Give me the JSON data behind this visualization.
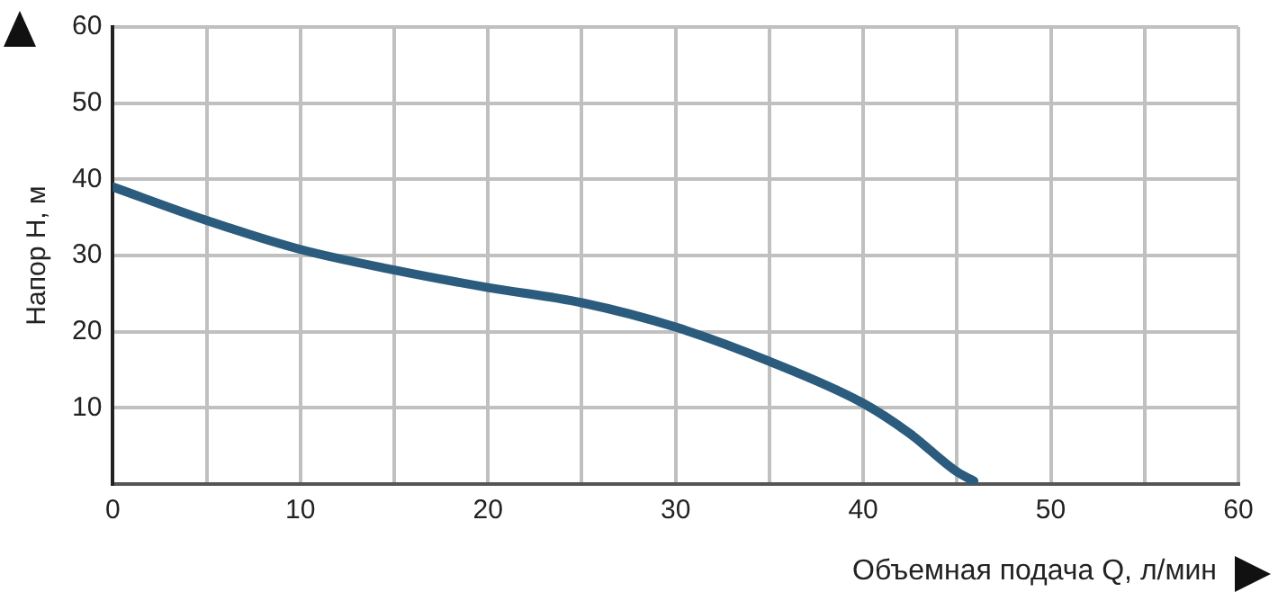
{
  "chart_data": {
    "type": "line",
    "xlabel": "Объемная подача Q, л/мин",
    "ylabel": "Напор H, м",
    "x": [
      0,
      5,
      10,
      15,
      20,
      25,
      30,
      35,
      40,
      42.5,
      45,
      45.9
    ],
    "series": [
      {
        "color": "#2b5b7d",
        "values": [
          39,
          34.6,
          30.8,
          28.1,
          25.8,
          23.8,
          20.6,
          16.1,
          10.6,
          6.6,
          1.6,
          0.4
        ]
      }
    ],
    "xlim": [
      0,
      60
    ],
    "ylim": [
      0,
      60
    ],
    "xticks": [
      0,
      {
        "value": 5,
        "label": null
      },
      10,
      {
        "value": 15,
        "label": null
      },
      20,
      {
        "value": 25,
        "label": null
      },
      30,
      {
        "value": 35,
        "label": null
      },
      40,
      {
        "value": 45,
        "label": null
      },
      50,
      {
        "value": 55,
        "label": null
      },
      60
    ],
    "yticks": [
      {
        "value": 0,
        "label": null
      },
      10,
      20,
      30,
      40,
      50,
      60
    ],
    "grid": true,
    "legend": false,
    "marker": "none",
    "line_style": "solid"
  }
}
